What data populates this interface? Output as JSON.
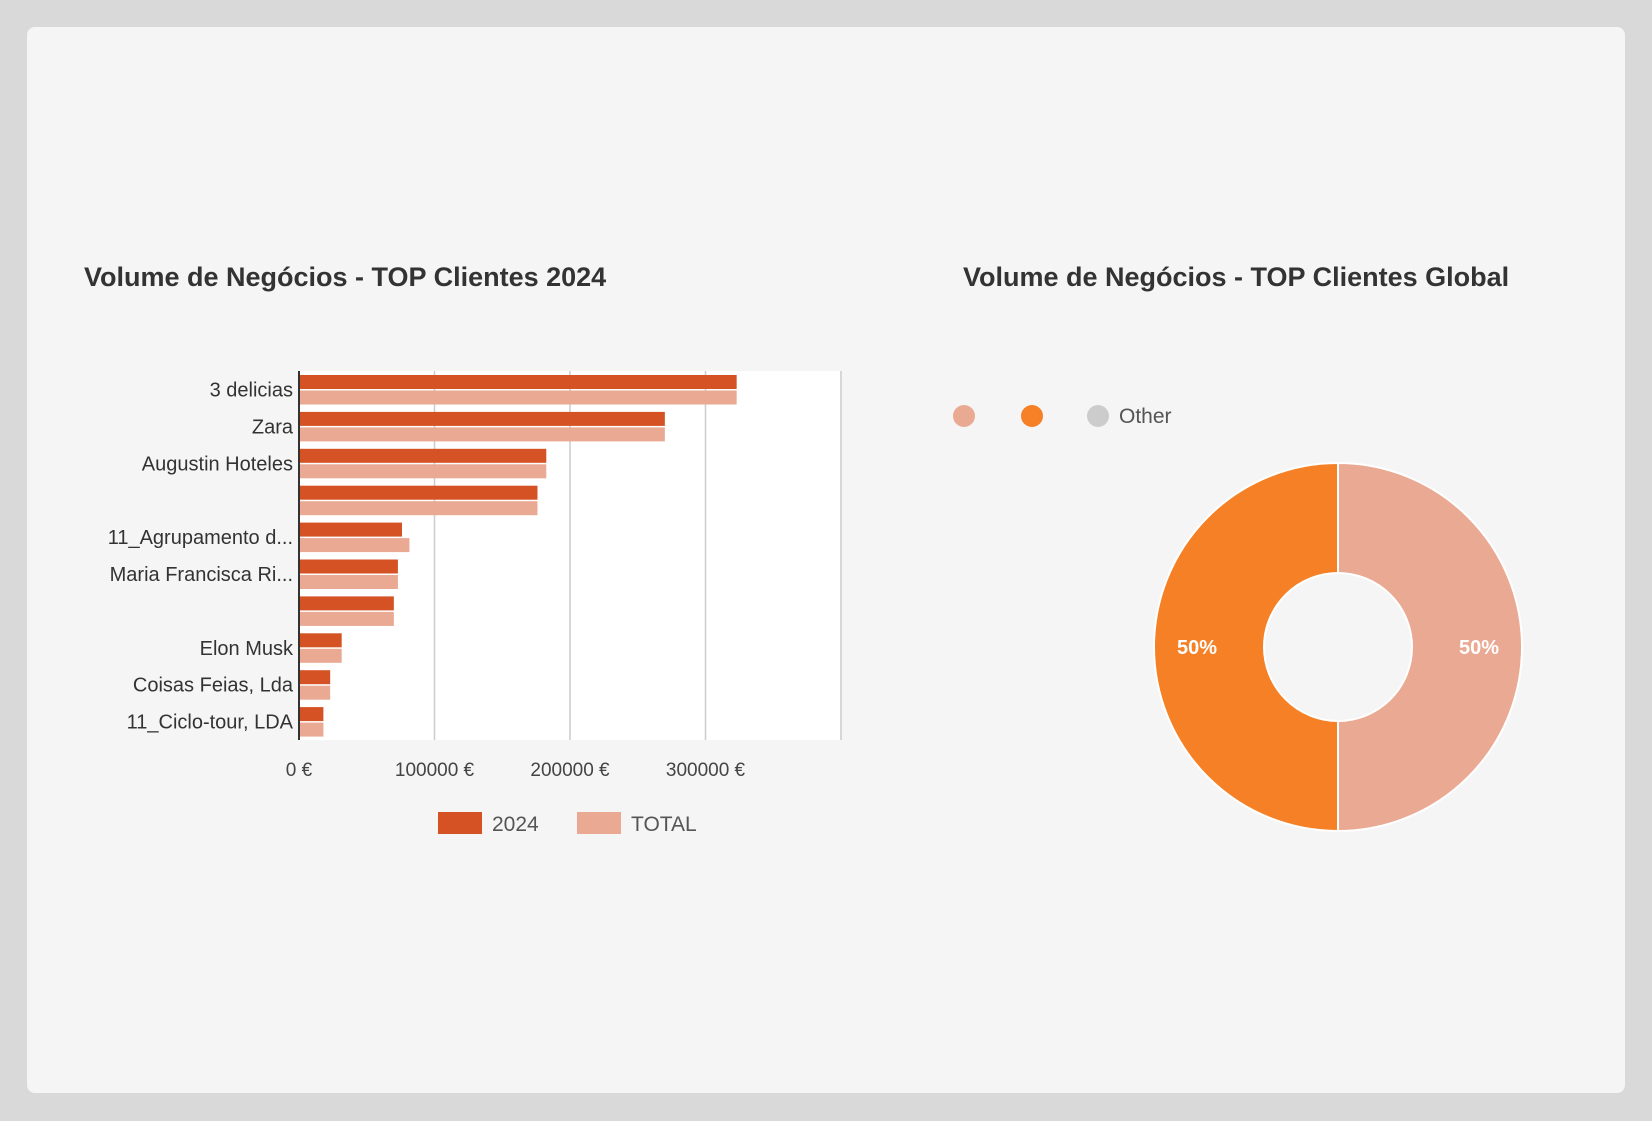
{
  "chart_data": [
    {
      "type": "bar",
      "orientation": "horizontal",
      "title": "Volume de Negócios - TOP Clientes 2024",
      "categories": [
        "3 delicias",
        "Zara",
        "Augustin Hoteles",
        "",
        "11_Agrupamento d...",
        "Maria Francisca Ri...",
        "",
        "Elon Musk",
        "Coisas Feias, Lda",
        "11_Ciclo-tour, LDA"
      ],
      "series": [
        {
          "name": "2024",
          "color": "#d55225",
          "values": [
            323000,
            270000,
            182500,
            176000,
            76000,
            73000,
            70000,
            31500,
            23000,
            18000
          ]
        },
        {
          "name": "TOTAL",
          "color": "#eaa992",
          "values": [
            323000,
            270000,
            182500,
            176000,
            81500,
            73000,
            70000,
            31500,
            23000,
            18000
          ]
        }
      ],
      "xlim": [
        0,
        400000
      ],
      "xticks": [
        0,
        100000,
        200000,
        300000
      ],
      "xtick_labels": [
        "0 €",
        "100000 €",
        "200000 €",
        "300000 €"
      ],
      "grid": true,
      "legend": "bottom"
    },
    {
      "type": "pie",
      "donut": true,
      "title": "Volume de Negócios - TOP Clientes Global",
      "slices": [
        {
          "label": "",
          "value": 50,
          "color": "#eaa992",
          "data_label": "50%"
        },
        {
          "label": "",
          "value": 50,
          "color": "#f58025",
          "data_label": "50%"
        },
        {
          "label": "Other",
          "value": 0,
          "color": "#cccccc"
        }
      ],
      "legend": "top-left"
    }
  ]
}
